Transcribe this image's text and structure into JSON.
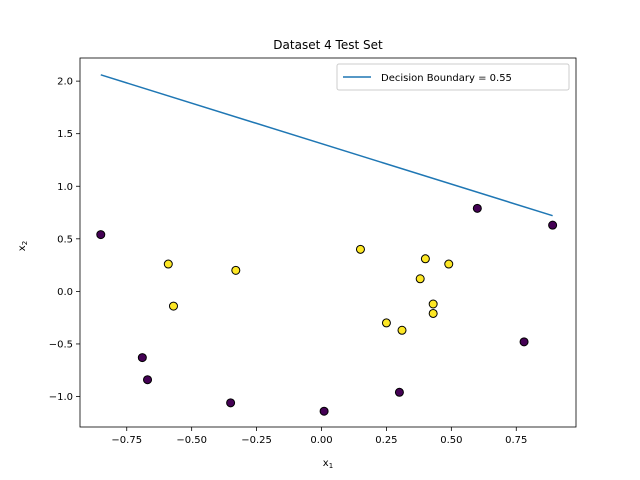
{
  "chart_data": {
    "type": "scatter",
    "title": "Dataset 4 Test Set",
    "xlabel_main": "x",
    "xlabel_sub": "1",
    "ylabel_main": "x",
    "ylabel_sub": "2",
    "xlim": [
      -0.93,
      0.98
    ],
    "ylim": [
      -1.29,
      2.22
    ],
    "xticks": [
      -0.75,
      -0.5,
      -0.25,
      0.0,
      0.25,
      0.5,
      0.75
    ],
    "xtick_labels": [
      "−0.75",
      "−0.50",
      "−0.25",
      "0.00",
      "0.25",
      "0.50",
      "0.75"
    ],
    "yticks": [
      -1.0,
      -0.5,
      0.0,
      0.5,
      1.0,
      1.5,
      2.0
    ],
    "ytick_labels": [
      "−1.0",
      "−0.5",
      "0.0",
      "0.5",
      "1.0",
      "1.5",
      "2.0"
    ],
    "legend_position": "top-right",
    "grid": false,
    "colors": {
      "class_0": "#440154",
      "class_1": "#fde725",
      "boundary": "#1f77b4",
      "edge": "#000000"
    },
    "boundary": {
      "name": "Decision Boundary = 0.55",
      "x": [
        -0.85,
        0.89
      ],
      "y": [
        2.06,
        0.72
      ]
    },
    "points": [
      {
        "x": -0.85,
        "y": 0.54,
        "class": 0
      },
      {
        "x": -0.69,
        "y": -0.63,
        "class": 0
      },
      {
        "x": -0.67,
        "y": -0.84,
        "class": 0
      },
      {
        "x": -0.35,
        "y": -1.06,
        "class": 0
      },
      {
        "x": 0.01,
        "y": -1.14,
        "class": 0
      },
      {
        "x": 0.3,
        "y": -0.96,
        "class": 0
      },
      {
        "x": 0.6,
        "y": 0.79,
        "class": 0
      },
      {
        "x": 0.78,
        "y": -0.48,
        "class": 0
      },
      {
        "x": 0.89,
        "y": 0.63,
        "class": 0
      },
      {
        "x": -0.59,
        "y": 0.26,
        "class": 1
      },
      {
        "x": -0.57,
        "y": -0.14,
        "class": 1
      },
      {
        "x": -0.33,
        "y": 0.2,
        "class": 1
      },
      {
        "x": 0.15,
        "y": 0.4,
        "class": 1
      },
      {
        "x": 0.25,
        "y": -0.3,
        "class": 1
      },
      {
        "x": 0.31,
        "y": -0.37,
        "class": 1
      },
      {
        "x": 0.38,
        "y": 0.12,
        "class": 1
      },
      {
        "x": 0.4,
        "y": 0.31,
        "class": 1
      },
      {
        "x": 0.43,
        "y": -0.12,
        "class": 1
      },
      {
        "x": 0.43,
        "y": -0.21,
        "class": 1
      },
      {
        "x": 0.49,
        "y": 0.26,
        "class": 1
      }
    ]
  }
}
